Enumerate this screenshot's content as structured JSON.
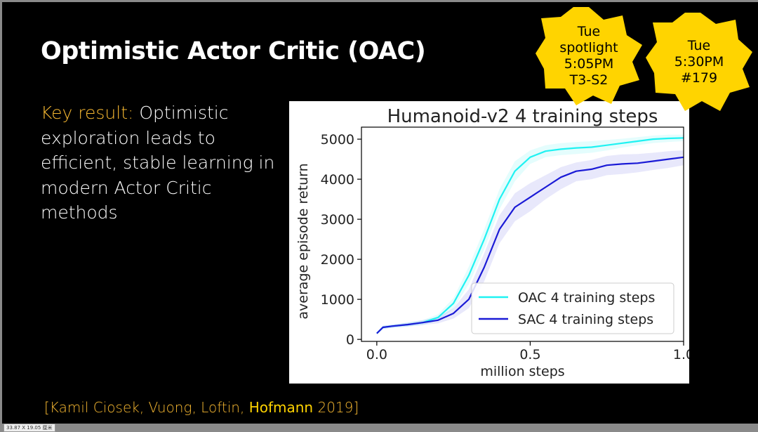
{
  "slide": {
    "title": "Optimistic Actor Critic (OAC)",
    "key_label": "Key result:",
    "key_text": " Optimistic exploration leads to efficient, stable learning in modern Actor Critic methods",
    "citation_prefix": "[Kamil Ciosek, Vuong, Loftin, ",
    "citation_highlight": "Hofmann",
    "citation_suffix": " 2019]"
  },
  "badges": [
    {
      "lines": [
        "Tue",
        "spotlight",
        "5:05PM",
        "T3-S2"
      ]
    },
    {
      "lines": [
        "Tue",
        "5:30PM",
        "#179"
      ]
    }
  ],
  "status_chip": "33.87 X 19.05 厘米",
  "colors": {
    "background": "#000000",
    "accent": "#f5b731",
    "badge_fill": "#ffd400",
    "oac_line": "#1ff2f2",
    "sac_line": "#1a1ad6"
  },
  "chart_data": {
    "type": "line",
    "title": "Humanoid-v2 4 training steps",
    "xlabel": "million steps",
    "ylabel": "average episode return",
    "xlim": [
      -0.05,
      1.0
    ],
    "ylim": [
      -50,
      5300
    ],
    "xticks": [
      0.0,
      0.5,
      1.0
    ],
    "xtick_labels": [
      "0.0",
      "0.5",
      "1.0"
    ],
    "yticks": [
      0,
      1000,
      2000,
      3000,
      4000,
      5000
    ],
    "ytick_labels": [
      "0",
      "1000",
      "2000",
      "3000",
      "4000",
      "5000"
    ],
    "grid": false,
    "legend": "bottom-right",
    "series": [
      {
        "name": "OAC 4 training steps",
        "color": "#1ff2f2",
        "x": [
          0.0,
          0.02,
          0.05,
          0.1,
          0.15,
          0.2,
          0.25,
          0.3,
          0.35,
          0.4,
          0.45,
          0.5,
          0.55,
          0.6,
          0.65,
          0.7,
          0.75,
          0.8,
          0.85,
          0.9,
          0.95,
          1.0
        ],
        "y": [
          150,
          300,
          330,
          370,
          420,
          550,
          900,
          1600,
          2500,
          3500,
          4200,
          4550,
          4700,
          4750,
          4780,
          4800,
          4850,
          4900,
          4950,
          5000,
          5020,
          5030
        ],
        "band_low": [
          130,
          260,
          290,
          320,
          360,
          470,
          770,
          1380,
          2250,
          3250,
          3950,
          4380,
          4550,
          4600,
          4630,
          4660,
          4720,
          4790,
          4850,
          4900,
          4930,
          4950
        ],
        "band_high": [
          170,
          340,
          370,
          420,
          480,
          630,
          1030,
          1820,
          2750,
          3750,
          4450,
          4720,
          4850,
          4900,
          4930,
          4950,
          4980,
          5010,
          5050,
          5090,
          5110,
          5110
        ]
      },
      {
        "name": "SAC 4 training steps",
        "color": "#1a1ad6",
        "x": [
          0.0,
          0.02,
          0.05,
          0.1,
          0.15,
          0.2,
          0.25,
          0.3,
          0.35,
          0.4,
          0.45,
          0.5,
          0.55,
          0.6,
          0.65,
          0.7,
          0.75,
          0.8,
          0.85,
          0.9,
          0.95,
          1.0
        ],
        "y": [
          150,
          300,
          330,
          370,
          420,
          480,
          650,
          1000,
          1800,
          2750,
          3300,
          3550,
          3800,
          4050,
          4200,
          4250,
          4350,
          4380,
          4400,
          4450,
          4500,
          4550
        ],
        "band_low": [
          130,
          260,
          290,
          320,
          360,
          400,
          520,
          780,
          1450,
          2400,
          2950,
          3200,
          3500,
          3750,
          3950,
          4000,
          4100,
          4130,
          4170,
          4230,
          4280,
          4350
        ],
        "band_high": [
          170,
          340,
          370,
          420,
          480,
          560,
          780,
          1250,
          2150,
          3100,
          3650,
          3900,
          4100,
          4300,
          4420,
          4480,
          4580,
          4620,
          4630,
          4660,
          4700,
          4720
        ]
      }
    ]
  }
}
